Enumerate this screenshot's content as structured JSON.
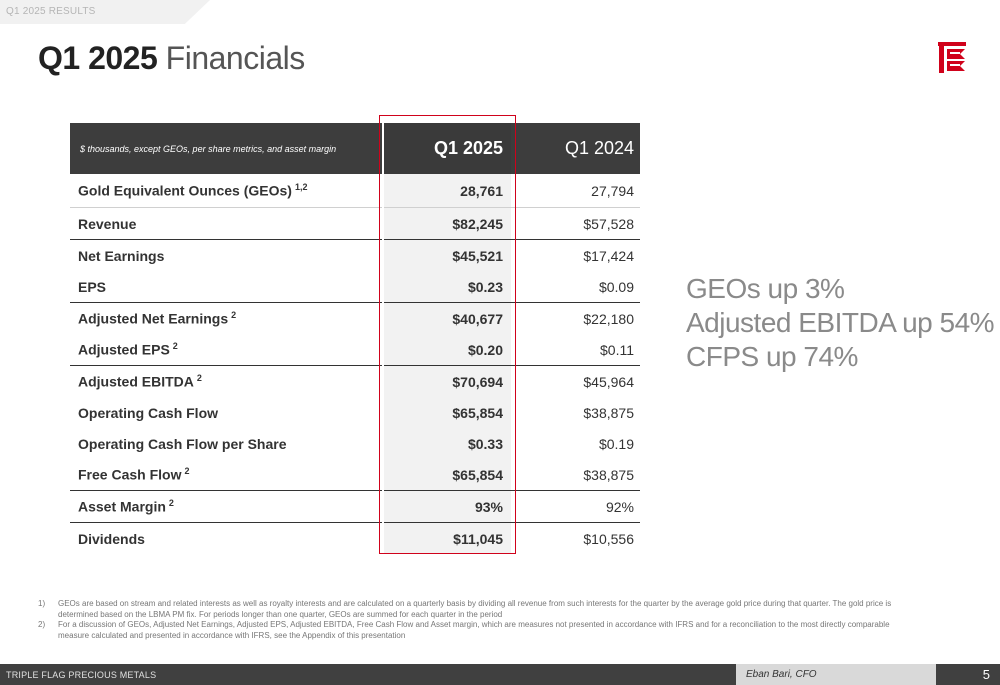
{
  "header": {
    "section": "Q1 2025 RESULTS",
    "title_bold": "Q1 2025",
    "title_light": "Financials",
    "logo": "triple-flag-logo-icon",
    "accent_color": "#d0021b"
  },
  "table": {
    "caption": "$ thousands, except GEOs, per share metrics, and asset margin",
    "columns": [
      "Q1 2025",
      "Q1 2024"
    ],
    "rows": [
      {
        "label": "Gold Equivalent Ounces (GEOs)",
        "sup": "1,2",
        "q1_2025": "28,761",
        "q1_2024": "27,794"
      },
      {
        "label": "Revenue",
        "sup": "",
        "q1_2025": "$82,245",
        "q1_2024": "$57,528"
      },
      {
        "label": "Net Earnings",
        "sup": "",
        "q1_2025": "$45,521",
        "q1_2024": "$17,424"
      },
      {
        "label": "EPS",
        "sup": "",
        "q1_2025": "$0.23",
        "q1_2024": "$0.09"
      },
      {
        "label": "Adjusted Net Earnings",
        "sup": "2",
        "q1_2025": "$40,677",
        "q1_2024": "$22,180"
      },
      {
        "label": "Adjusted EPS",
        "sup": "2",
        "q1_2025": "$0.20",
        "q1_2024": "$0.11"
      },
      {
        "label": "Adjusted EBITDA",
        "sup": "2",
        "q1_2025": "$70,694",
        "q1_2024": "$45,964"
      },
      {
        "label": "Operating Cash Flow",
        "sup": "",
        "q1_2025": "$65,854",
        "q1_2024": "$38,875"
      },
      {
        "label": "Operating Cash Flow per Share",
        "sup": "",
        "q1_2025": "$0.33",
        "q1_2024": "$0.19"
      },
      {
        "label": "Free Cash Flow",
        "sup": "2",
        "q1_2025": "$65,854",
        "q1_2024": "$38,875"
      },
      {
        "label": "Asset Margin",
        "sup": "2",
        "q1_2025": "93%",
        "q1_2024": "92%"
      },
      {
        "label": "Dividends",
        "sup": "",
        "q1_2025": "$11,045",
        "q1_2024": "$10,556"
      }
    ]
  },
  "highlights": [
    "GEOs up 3%",
    "Adjusted EBITDA up 54%",
    "CFPS up 74%"
  ],
  "footnotes": [
    {
      "num": "1)",
      "text": "GEOs are based on stream and related interests as well as royalty interests and are calculated on a quarterly basis by dividing all revenue from such interests for the quarter by the average gold price during that quarter. The gold price is determined based on the LBMA PM fix. For periods longer than one quarter, GEOs are summed for each quarter in the period"
    },
    {
      "num": "2)",
      "text": "For a discussion of GEOs, Adjusted Net Earnings, Adjusted EPS, Adjusted EBITDA, Free Cash Flow and Asset margin, which are measures not presented in accordance with IFRS and for a reconciliation to the most directly comparable measure calculated and presented in accordance with IFRS, see the Appendix of this presentation"
    }
  ],
  "footer": {
    "company": "TRIPLE FLAG PRECIOUS METALS",
    "presenter": "Eban Bari, CFO",
    "page": "5"
  }
}
